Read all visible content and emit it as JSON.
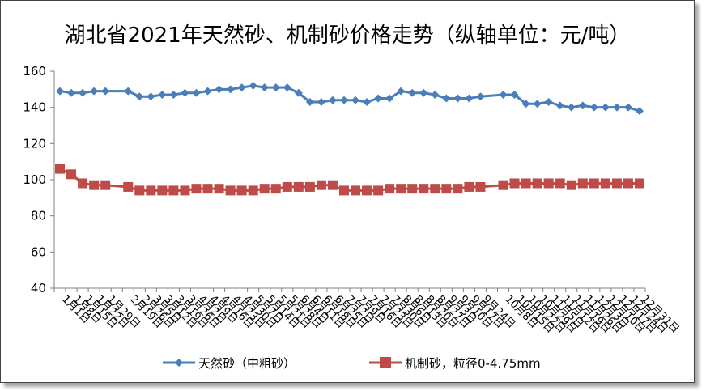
{
  "chart_data": {
    "type": "line",
    "title": "湖北省2021年天然砂、机制砂价格走势（纵轴单位：元/吨）",
    "xlabel": "",
    "ylabel": "",
    "ylim": [
      40,
      160
    ],
    "yticks": [
      40,
      60,
      80,
      100,
      120,
      140,
      160
    ],
    "grid": false,
    "legend_position": "bottom",
    "categories": [
      "1月1日",
      "1月8日",
      "1月15日",
      "1月22日",
      "1月29日",
      "2月19日",
      "2月26日",
      "3月5日",
      "3月12日",
      "3月19日",
      "3月26日",
      "4月2日",
      "4月9日",
      "4月16日",
      "4月23日",
      "4月30日",
      "5月7日",
      "5月14日",
      "5月21日",
      "5月28日",
      "6月4日",
      "6月11日",
      "6月18日",
      "6月25日",
      "7月2日",
      "7月9日",
      "7月16日",
      "7月23日",
      "7月30日",
      "8月6日",
      "8月13日",
      "8月20日",
      "8月27日",
      "9月3日",
      "9月10日",
      "9月17日",
      "9月24日",
      "10月8日",
      "10月15日",
      "10月22日",
      "10月29日",
      "11月5日",
      "11月12日",
      "11月19日",
      "11月26日",
      "12月3日",
      "12月10日",
      "12月17日",
      "12月24日",
      "12月31日"
    ],
    "category_positions": [
      0,
      1,
      2,
      3,
      4,
      6,
      7,
      8,
      9,
      10,
      11,
      12,
      13,
      14,
      15,
      16,
      17,
      18,
      19,
      20,
      21,
      22,
      23,
      24,
      25,
      26,
      27,
      28,
      29,
      30,
      31,
      32,
      33,
      34,
      35,
      36,
      37,
      39,
      40,
      41,
      42,
      43,
      44,
      45,
      46,
      47,
      48,
      49,
      50,
      51
    ],
    "series": [
      {
        "name": "天然砂（中粗砂）",
        "color": "#4a7ebb",
        "marker": "diamond",
        "values": [
          149,
          148,
          148,
          149,
          149,
          149,
          146,
          146,
          147,
          147,
          148,
          148,
          149,
          150,
          150,
          151,
          152,
          151,
          151,
          151,
          148,
          143,
          143,
          144,
          144,
          144,
          143,
          145,
          145,
          149,
          148,
          148,
          147,
          145,
          145,
          145,
          146,
          147,
          147,
          142,
          142,
          143,
          141,
          140,
          141,
          140,
          140,
          140,
          140,
          138
        ]
      },
      {
        "name": "机制砂，粒径0-4.75mm",
        "color": "#be4b48",
        "marker": "square",
        "values": [
          106,
          103,
          98,
          97,
          97,
          96,
          94,
          94,
          94,
          94,
          94,
          95,
          95,
          95,
          94,
          94,
          94,
          95,
          95,
          96,
          96,
          96,
          97,
          97,
          94,
          94,
          94,
          94,
          95,
          95,
          95,
          95,
          95,
          95,
          95,
          96,
          96,
          97,
          98,
          98,
          98,
          98,
          98,
          97,
          98,
          98,
          98,
          98,
          98,
          98
        ]
      }
    ]
  }
}
